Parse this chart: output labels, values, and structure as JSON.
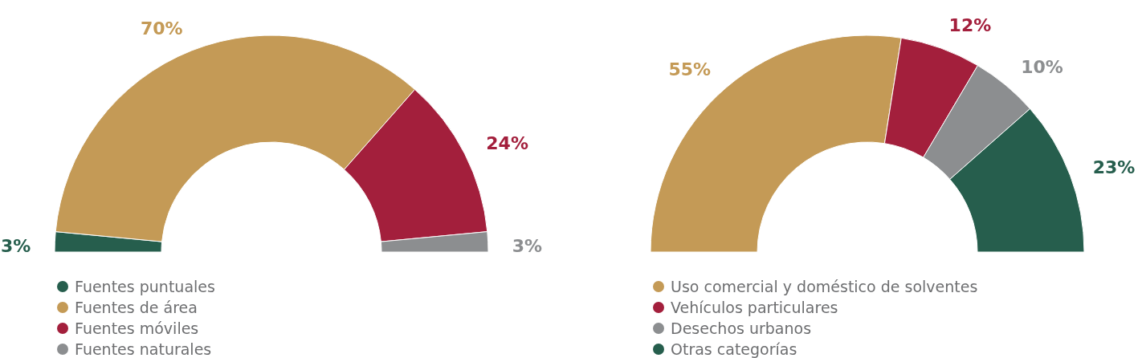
{
  "chart_data": [
    {
      "type": "donut",
      "categories": [
        "Fuentes puntuales",
        "Fuentes de área",
        "Fuentes móviles",
        "Fuentes naturales"
      ],
      "values": [
        3,
        70,
        24,
        3
      ],
      "value_labels": [
        "3%",
        "70%",
        "24%",
        "3%"
      ],
      "colors": [
        "#265e4d",
        "#c49a56",
        "#a31f3c",
        "#8c8e90"
      ],
      "legend": "bottom"
    },
    {
      "type": "donut",
      "categories": [
        "Uso comercial y doméstico de solventes",
        "Vehículos particulares",
        "Desechos urbanos",
        "Otras categorías"
      ],
      "values": [
        55,
        12,
        10,
        23
      ],
      "value_labels": [
        "55%",
        "12%",
        "10%",
        "23%"
      ],
      "colors": [
        "#c49a56",
        "#a31f3c",
        "#8c8e90",
        "#265e4d"
      ],
      "legend": "bottom"
    }
  ]
}
